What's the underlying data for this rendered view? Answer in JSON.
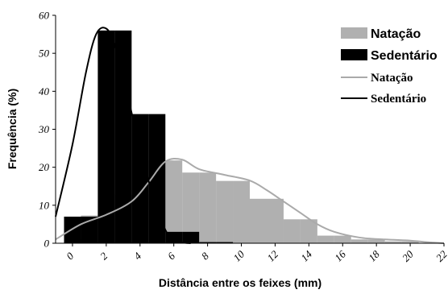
{
  "chart_data": {
    "type": "bar",
    "xlabel": "Distância entre os feixes (mm)",
    "ylabel": "Frequência (%)",
    "ylim": [
      0,
      60
    ],
    "yticks": [
      "0",
      "10",
      "20",
      "30",
      "40",
      "50",
      "60"
    ],
    "xlim": [
      -1,
      22
    ],
    "xticks": [
      "0",
      "2",
      "4",
      "6",
      "8",
      "10",
      "12",
      "14",
      "16",
      "18",
      "20",
      "22"
    ],
    "x": [
      0,
      1,
      2,
      3,
      4,
      5,
      6,
      7,
      8,
      9,
      10,
      11,
      12,
      13,
      14,
      15,
      16,
      17,
      18,
      19,
      20,
      21
    ],
    "grid": false,
    "legend_position": "top-right",
    "series": [
      {
        "name": "Natação",
        "kind": "bar",
        "color": "#b0b0b0",
        "values": [
          1,
          7.3,
          7.3,
          12.8,
          12.8,
          21.8,
          21.8,
          18.6,
          18.6,
          16.4,
          16.4,
          11.7,
          11.7,
          6.3,
          6.3,
          2,
          2,
          1,
          1,
          0.5,
          0.5,
          0
        ]
      },
      {
        "name": "Sedentário",
        "kind": "bar",
        "color": "#000000",
        "values": [
          7,
          7,
          56,
          56,
          34,
          34,
          3,
          3,
          0.3,
          0.3,
          0,
          0,
          0,
          0,
          0,
          0,
          0,
          0,
          0,
          0,
          0,
          0
        ]
      },
      {
        "name": "Natação",
        "kind": "line",
        "color": "#aaaaaa",
        "x": [
          -1,
          0.5,
          2,
          3.5,
          4.5,
          5.5,
          6.5,
          7.5,
          9,
          10.5,
          11.5,
          12.5,
          13.5,
          14.5,
          15.5,
          17,
          18.5,
          20,
          21,
          22
        ],
        "values": [
          1,
          5,
          7.5,
          11,
          16,
          21.5,
          22,
          19.5,
          18,
          16.5,
          14,
          11,
          8,
          5,
          3,
          1.5,
          1,
          0.7,
          0.3,
          0
        ]
      },
      {
        "name": "Sedentário",
        "kind": "line",
        "color": "#000000",
        "x": [
          -1,
          0,
          0.8,
          1.4,
          2,
          2.5,
          3.2,
          4,
          4.8,
          5.5,
          6,
          6.5,
          7
        ],
        "values": [
          7,
          26,
          45,
          55,
          56.5,
          52,
          40,
          25,
          12,
          3.5,
          1,
          0.2,
          0
        ]
      }
    ],
    "legend": [
      {
        "label": "Natação",
        "kind": "bar",
        "color": "#b0b0b0"
      },
      {
        "label": "Sedentário",
        "kind": "bar",
        "color": "#000000"
      },
      {
        "label": "Natação",
        "kind": "line",
        "color": "#aaaaaa"
      },
      {
        "label": "Sedentário",
        "kind": "line",
        "color": "#000000"
      }
    ]
  }
}
